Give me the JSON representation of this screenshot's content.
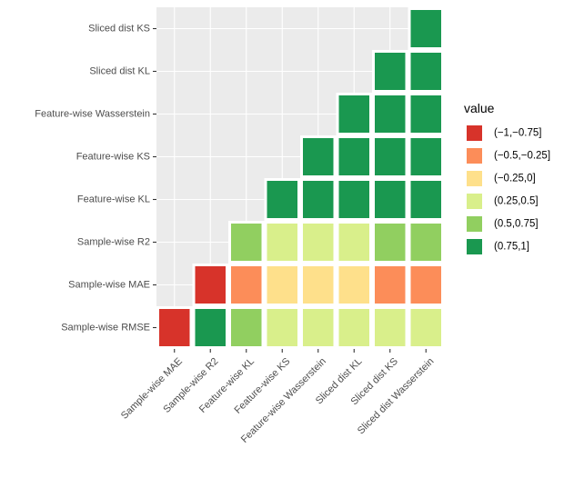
{
  "chart_data": {
    "type": "heatmap",
    "title": "",
    "xlabel": "",
    "ylabel": "",
    "x_categories": [
      "Sample-wise MAE",
      "Sample-wise R2",
      "Feature-wise KL",
      "Feature-wise KS",
      "Feature-wise Wasserstein",
      "Sliced dist KL",
      "Sliced dist KS",
      "Sliced dist Wasserstein"
    ],
    "y_categories": [
      "Sample-wise RMSE",
      "Sample-wise MAE",
      "Sample-wise R2",
      "Feature-wise KL",
      "Feature-wise KS",
      "Feature-wise Wasserstein",
      "Sliced dist KL",
      "Sliced dist KS"
    ],
    "cells": [
      {
        "x": "Sample-wise MAE",
        "y": "Sample-wise RMSE",
        "value": "(-1,-0.75]"
      },
      {
        "x": "Sample-wise R2",
        "y": "Sample-wise RMSE",
        "value": "(0.75,1]"
      },
      {
        "x": "Feature-wise KL",
        "y": "Sample-wise RMSE",
        "value": "(0.5,0.75]"
      },
      {
        "x": "Feature-wise KS",
        "y": "Sample-wise RMSE",
        "value": "(0.25,0.5]"
      },
      {
        "x": "Feature-wise Wasserstein",
        "y": "Sample-wise RMSE",
        "value": "(0.25,0.5]"
      },
      {
        "x": "Sliced dist KL",
        "y": "Sample-wise RMSE",
        "value": "(0.25,0.5]"
      },
      {
        "x": "Sliced dist KS",
        "y": "Sample-wise RMSE",
        "value": "(0.25,0.5]"
      },
      {
        "x": "Sliced dist Wasserstein",
        "y": "Sample-wise RMSE",
        "value": "(0.25,0.5]"
      },
      {
        "x": "Sample-wise R2",
        "y": "Sample-wise MAE",
        "value": "(-1,-0.75]"
      },
      {
        "x": "Feature-wise KL",
        "y": "Sample-wise MAE",
        "value": "(-0.5,-0.25]"
      },
      {
        "x": "Feature-wise KS",
        "y": "Sample-wise MAE",
        "value": "(-0.25,0]"
      },
      {
        "x": "Feature-wise Wasserstein",
        "y": "Sample-wise MAE",
        "value": "(-0.25,0]"
      },
      {
        "x": "Sliced dist KL",
        "y": "Sample-wise MAE",
        "value": "(-0.25,0]"
      },
      {
        "x": "Sliced dist KS",
        "y": "Sample-wise MAE",
        "value": "(-0.5,-0.25]"
      },
      {
        "x": "Sliced dist Wasserstein",
        "y": "Sample-wise MAE",
        "value": "(-0.5,-0.25]"
      },
      {
        "x": "Feature-wise KL",
        "y": "Sample-wise R2",
        "value": "(0.5,0.75]"
      },
      {
        "x": "Feature-wise KS",
        "y": "Sample-wise R2",
        "value": "(0.25,0.5]"
      },
      {
        "x": "Feature-wise Wasserstein",
        "y": "Sample-wise R2",
        "value": "(0.25,0.5]"
      },
      {
        "x": "Sliced dist KL",
        "y": "Sample-wise R2",
        "value": "(0.25,0.5]"
      },
      {
        "x": "Sliced dist KS",
        "y": "Sample-wise R2",
        "value": "(0.5,0.75]"
      },
      {
        "x": "Sliced dist Wasserstein",
        "y": "Sample-wise R2",
        "value": "(0.5,0.75]"
      },
      {
        "x": "Feature-wise KS",
        "y": "Feature-wise KL",
        "value": "(0.75,1]"
      },
      {
        "x": "Feature-wise Wasserstein",
        "y": "Feature-wise KL",
        "value": "(0.75,1]"
      },
      {
        "x": "Sliced dist KL",
        "y": "Feature-wise KL",
        "value": "(0.75,1]"
      },
      {
        "x": "Sliced dist KS",
        "y": "Feature-wise KL",
        "value": "(0.75,1]"
      },
      {
        "x": "Sliced dist Wasserstein",
        "y": "Feature-wise KL",
        "value": "(0.75,1]"
      },
      {
        "x": "Feature-wise Wasserstein",
        "y": "Feature-wise KS",
        "value": "(0.75,1]"
      },
      {
        "x": "Sliced dist KL",
        "y": "Feature-wise KS",
        "value": "(0.75,1]"
      },
      {
        "x": "Sliced dist KS",
        "y": "Feature-wise KS",
        "value": "(0.75,1]"
      },
      {
        "x": "Sliced dist Wasserstein",
        "y": "Feature-wise KS",
        "value": "(0.75,1]"
      },
      {
        "x": "Sliced dist KL",
        "y": "Feature-wise Wasserstein",
        "value": "(0.75,1]"
      },
      {
        "x": "Sliced dist KS",
        "y": "Feature-wise Wasserstein",
        "value": "(0.75,1]"
      },
      {
        "x": "Sliced dist Wasserstein",
        "y": "Feature-wise Wasserstein",
        "value": "(0.75,1]"
      },
      {
        "x": "Sliced dist KS",
        "y": "Sliced dist KL",
        "value": "(0.75,1]"
      },
      {
        "x": "Sliced dist Wasserstein",
        "y": "Sliced dist KL",
        "value": "(0.75,1]"
      },
      {
        "x": "Sliced dist Wasserstein",
        "y": "Sliced dist KS",
        "value": "(0.75,1]"
      }
    ],
    "legend": {
      "title": "value",
      "position": "right",
      "entries": [
        {
          "label": "(−1,−0.75]",
          "key": "(-1,-0.75]",
          "color": "#d7332a"
        },
        {
          "label": "(−0.5,−0.25]",
          "key": "(-0.5,-0.25]",
          "color": "#fc8d59"
        },
        {
          "label": "(−0.25,0]",
          "key": "(-0.25,0]",
          "color": "#fee08b"
        },
        {
          "label": "(0.25,0.5]",
          "key": "(0.25,0.5]",
          "color": "#d9ef8b"
        },
        {
          "label": "(0.5,0.75]",
          "key": "(0.5,0.75]",
          "color": "#91cf60"
        },
        {
          "label": "(0.75,1]",
          "key": "(0.75,1]",
          "color": "#1a9850"
        }
      ]
    },
    "panel_background": "#ebebeb",
    "grid": true
  }
}
